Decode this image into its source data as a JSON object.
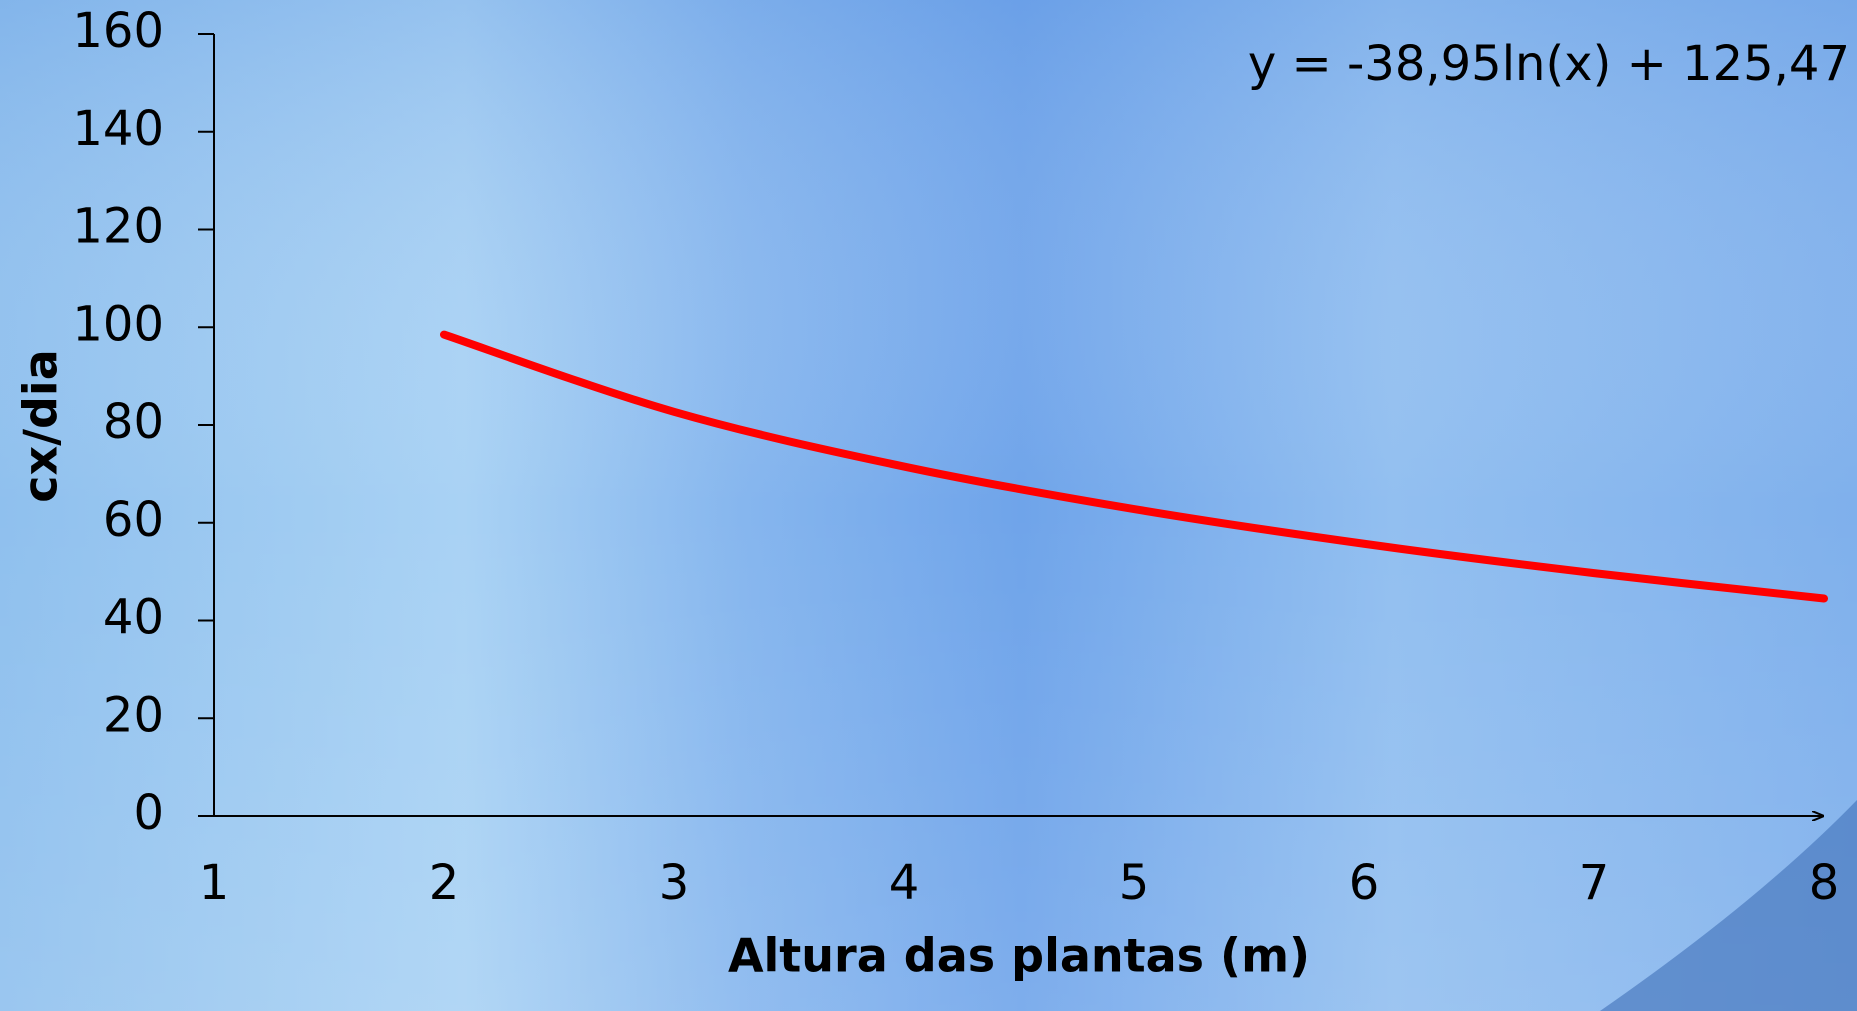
{
  "chart_data": {
    "type": "line",
    "annotation": "y = -38,95ln(x) + 125,47",
    "x_label": "Altura das plantas (m)",
    "y_label": "cx/dia",
    "x": [
      2,
      3,
      4,
      5,
      6,
      7,
      8
    ],
    "series": [
      {
        "name": "cx/dia",
        "color": "#ff0000",
        "values": [
          98.5,
          82.7,
          71.5,
          62.8,
          55.7,
          49.7,
          44.5
        ]
      }
    ],
    "xlim": [
      1,
      8
    ],
    "xticks": [
      1,
      2,
      3,
      4,
      5,
      6,
      7,
      8
    ],
    "ylim": [
      0,
      160
    ],
    "yticks": [
      0,
      20,
      40,
      60,
      80,
      100,
      120,
      140,
      160
    ],
    "grid": false
  }
}
